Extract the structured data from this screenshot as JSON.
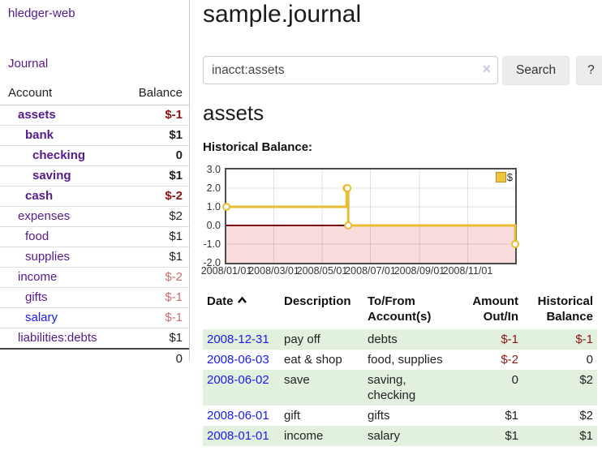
{
  "theme": {
    "purple": "#551a8b",
    "blue": "#1a1aee",
    "dark_red": "#8b1515",
    "muted_red": "#c56f6f",
    "row_green": "#e2f0de"
  },
  "app": {
    "brand": "hledger-web"
  },
  "sidebar": {
    "nav_journal": "Journal",
    "accounts_table": {
      "headers": {
        "account": "Account",
        "balance": "Balance"
      },
      "rows": [
        {
          "label": "assets",
          "balance": "$-1",
          "level": 1,
          "selected": true,
          "balance_style": "neg",
          "link_color": "purple"
        },
        {
          "label": "bank",
          "balance": "$1",
          "level": 2,
          "selected": true,
          "balance_style": "pos",
          "link_color": "purple"
        },
        {
          "label": "checking",
          "balance": "0",
          "level": 3,
          "selected": true,
          "balance_style": "pos",
          "link_color": "purple"
        },
        {
          "label": "saving",
          "balance": "$1",
          "level": 3,
          "selected": true,
          "balance_style": "pos",
          "link_color": "purple"
        },
        {
          "label": "cash",
          "balance": "$-2",
          "level": 2,
          "selected": true,
          "balance_style": "neg",
          "link_color": "purple"
        },
        {
          "label": "expenses",
          "balance": "$2",
          "level": 1,
          "selected": false,
          "balance_style": "pos",
          "link_color": "purple"
        },
        {
          "label": "food",
          "balance": "$1",
          "level": 2,
          "selected": false,
          "balance_style": "pos",
          "link_color": "purple"
        },
        {
          "label": "supplies",
          "balance": "$1",
          "level": 2,
          "selected": false,
          "balance_style": "pos",
          "link_color": "purple"
        },
        {
          "label": "income",
          "balance": "$-2",
          "level": 1,
          "selected": false,
          "balance_style": "neg-muted",
          "link_color": "purple"
        },
        {
          "label": "gifts",
          "balance": "$-1",
          "level": 2,
          "selected": false,
          "balance_style": "neg-muted",
          "link_color": "purple"
        },
        {
          "label": "salary",
          "balance": "$-1",
          "level": 2,
          "selected": false,
          "balance_style": "neg-muted",
          "link_color": "blue"
        },
        {
          "label": "liabilities:debts",
          "balance": "$1",
          "level": 1,
          "selected": false,
          "balance_style": "pos",
          "link_color": "purple"
        }
      ],
      "total": "0"
    }
  },
  "main": {
    "title": "sample.journal",
    "search": {
      "value": "inacct:assets",
      "clear_icon": "×",
      "button_label": "Search",
      "help_label": "?"
    },
    "account_heading": "assets",
    "chart_label": "Historical Balance:"
  },
  "chart_data": {
    "type": "line",
    "step": true,
    "title": "Historical Balance:",
    "legend": "$",
    "legend_position": "top-right",
    "series": [
      {
        "name": "$",
        "points": [
          [
            "2008-01-01",
            1
          ],
          [
            "2008-06-01",
            2
          ],
          [
            "2008-06-02",
            2
          ],
          [
            "2008-06-03",
            0
          ],
          [
            "2008-12-31",
            -1
          ]
        ]
      }
    ],
    "x_range": [
      "2008-01-01",
      "2008-12-31"
    ],
    "x_ticks": [
      "2008/01/01",
      "2008/03/01",
      "2008/05/01",
      "2008/07/01",
      "2008/09/01",
      "2008/11/01"
    ],
    "y_ticks": [
      "3.0",
      "2.0",
      "1.0",
      "0.0",
      "-1.0",
      "-2.0"
    ],
    "ylim": [
      -2,
      3
    ],
    "grid": true,
    "colors": {
      "line": "#e8bc33",
      "marker_fill": "#ffffff",
      "negative_area": "#fbdcdc",
      "zero_line": "#7d0b0b",
      "gridline": "rgba(0,0,0,0.12)"
    }
  },
  "register": {
    "headers": [
      "Date",
      "Description",
      "To/From Account(s)",
      "Amount Out/In",
      "Historical Balance"
    ],
    "sort": {
      "column": "Date",
      "direction": "asc"
    },
    "rows": [
      {
        "date": "2008-12-31",
        "description": "pay off",
        "accounts": "debts",
        "amount": "$-1",
        "balance": "$-1",
        "amount_negative": true,
        "balance_negative": true,
        "green": true
      },
      {
        "date": "2008-06-03",
        "description": "eat & shop",
        "accounts": "food, supplies",
        "amount": "$-2",
        "balance": "0",
        "amount_negative": true,
        "balance_negative": false,
        "green": false
      },
      {
        "date": "2008-06-02",
        "description": "save",
        "accounts": "saving, checking",
        "amount": "0",
        "balance": "$2",
        "amount_negative": false,
        "balance_negative": false,
        "green": true
      },
      {
        "date": "2008-06-01",
        "description": "gift",
        "accounts": "gifts",
        "amount": "$1",
        "balance": "$2",
        "amount_negative": false,
        "balance_negative": false,
        "green": false
      },
      {
        "date": "2008-01-01",
        "description": "income",
        "accounts": "salary",
        "amount": "$1",
        "balance": "$1",
        "amount_negative": false,
        "balance_negative": false,
        "green": true
      }
    ]
  }
}
